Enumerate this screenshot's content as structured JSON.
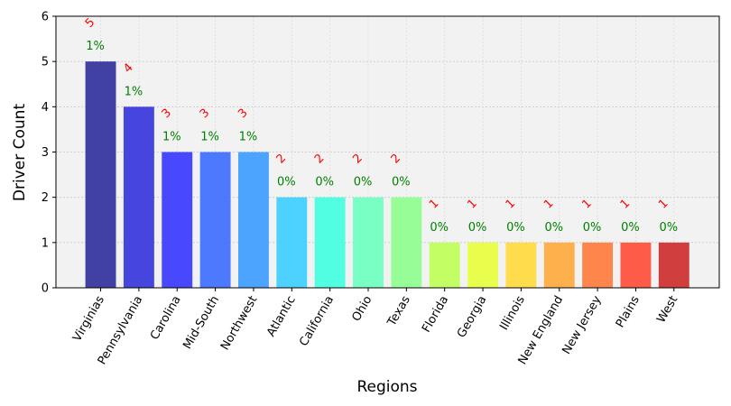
{
  "chart_data": {
    "type": "bar",
    "title": "",
    "xlabel": "Regions",
    "ylabel": "Driver Count",
    "ylim": [
      0,
      6
    ],
    "yticks": [
      0,
      1,
      2,
      3,
      4,
      5,
      6
    ],
    "grid": true,
    "categories": [
      "Virginias",
      "Pennsylvania",
      "Carolina",
      "Mid-South",
      "Northwest",
      "Atlantic",
      "California",
      "Ohio",
      "Texas",
      "Florida",
      "Georgia",
      "Illinois",
      "New England",
      "New Jersey",
      "Plains",
      "West"
    ],
    "values": [
      5,
      4,
      3,
      3,
      3,
      2,
      2,
      2,
      2,
      1,
      1,
      1,
      1,
      1,
      1,
      1
    ],
    "count_labels": [
      "5",
      "4",
      "3",
      "3",
      "3",
      "2",
      "2",
      "2",
      "2",
      "1",
      "1",
      "1",
      "1",
      "1",
      "1",
      "1"
    ],
    "percent_labels": [
      "1%",
      "1%",
      "1%",
      "1%",
      "1%",
      "0%",
      "0%",
      "0%",
      "0%",
      "0%",
      "0%",
      "0%",
      "0%",
      "0%",
      "0%",
      "0%"
    ],
    "colors": [
      "#2e2e9a",
      "#3333dd",
      "#3535ff",
      "#3a6bff",
      "#3a9bff",
      "#3bcdff",
      "#40ffe0",
      "#6bffbf",
      "#8dff8d",
      "#bfff55",
      "#e8ff3a",
      "#ffd93a",
      "#ffa93a",
      "#ff7a3a",
      "#ff4a35",
      "#cc2a2a"
    ],
    "bar_opacity": 0.9,
    "count_color": "#ff0000",
    "percent_color": "#008000",
    "plot_background": "#f2f2f2"
  }
}
